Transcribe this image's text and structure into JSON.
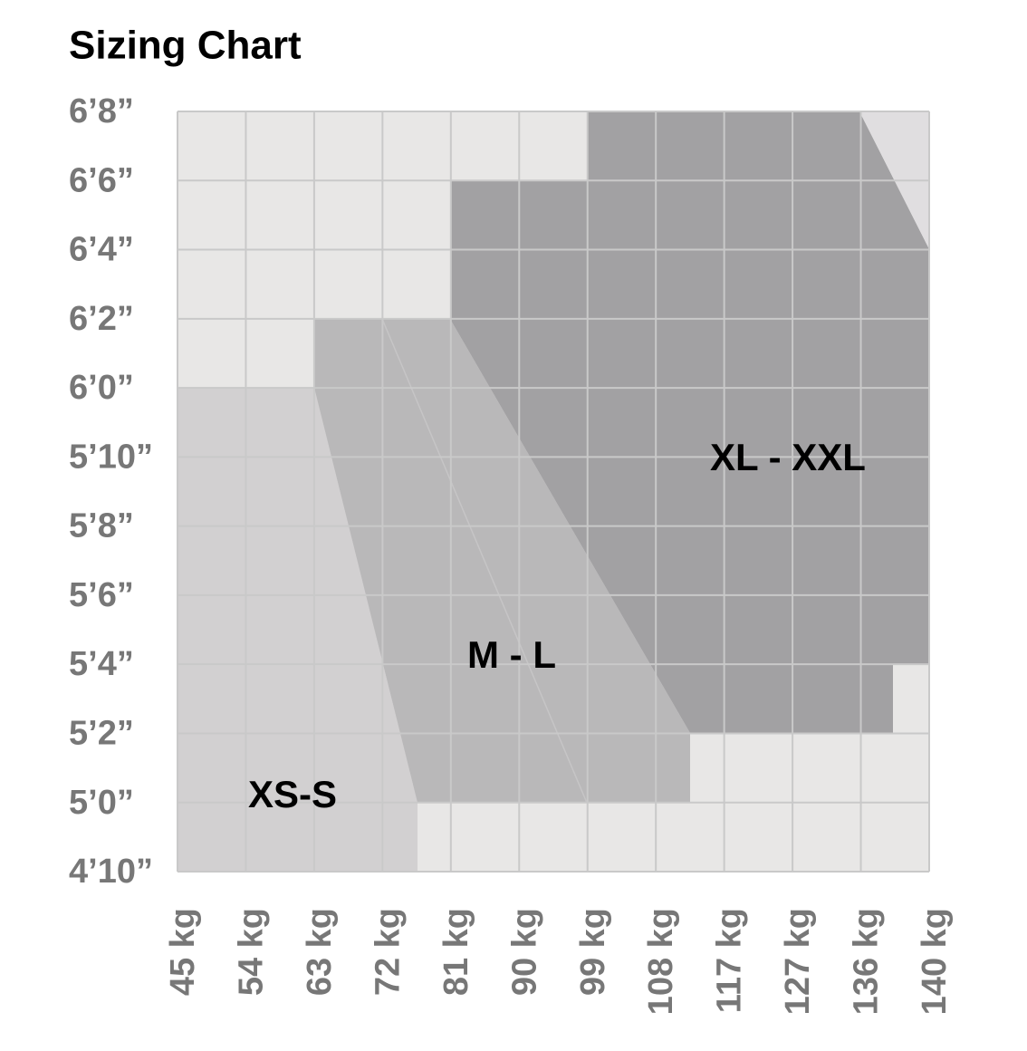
{
  "title": "Sizing Chart",
  "height_labels": [
    "6’8”",
    "6’6”",
    "6’4”",
    "6’2”",
    "6’0”",
    "5’10”",
    "5’8”",
    "5’6”",
    "5’4”",
    "5’2”",
    "5’0”",
    "4’10”"
  ],
  "weight_labels": [
    "45 kg",
    "54 kg",
    "63 kg",
    "72 kg",
    "81 kg",
    "90 kg",
    "99 kg",
    "108 kg",
    "117 kg",
    "127 kg",
    "136 kg",
    "140 kg"
  ],
  "zones": [
    {
      "label": "XS-S"
    },
    {
      "label": "M - L"
    },
    {
      "label": "XL - XXL"
    }
  ]
}
